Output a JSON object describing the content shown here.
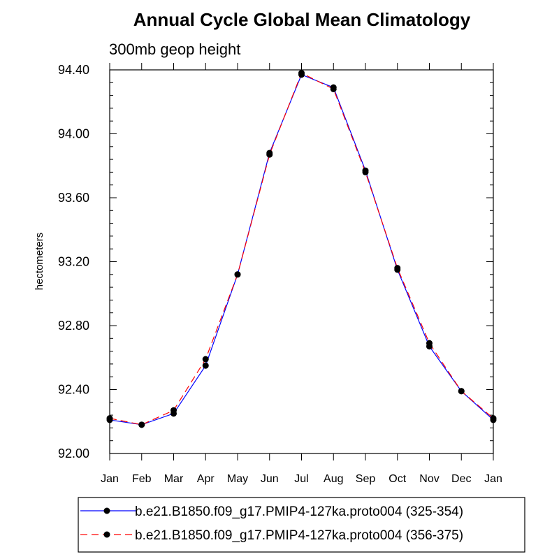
{
  "chart_data": {
    "type": "line",
    "title": "Annual Cycle Global Mean Climatology",
    "subtitle": "300mb geop height",
    "xlabel": "",
    "ylabel": "hectometers",
    "categories": [
      "Jan",
      "Feb",
      "Mar",
      "Apr",
      "May",
      "Jun",
      "Jul",
      "Aug",
      "Sep",
      "Oct",
      "Nov",
      "Dec",
      "Jan"
    ],
    "ylim": [
      92.0,
      94.4
    ],
    "yticks": [
      92.0,
      92.4,
      92.8,
      93.2,
      93.6,
      94.0,
      94.4
    ],
    "ytick_labels": [
      "92.00",
      "92.40",
      "92.80",
      "93.20",
      "93.60",
      "94.00",
      "94.40"
    ],
    "grid": false,
    "legend_position": "bottom",
    "series": [
      {
        "name": "b.e21.B1850.f09_g17.PMIP4-127ka.proto004 (325-354)",
        "color": "#0000ff",
        "line_style": "solid",
        "marker": "filled-circle",
        "values": [
          92.21,
          92.18,
          92.25,
          92.55,
          93.12,
          93.88,
          94.37,
          94.29,
          93.77,
          93.15,
          92.67,
          92.39,
          92.21
        ]
      },
      {
        "name": "b.e21.B1850.f09_g17.PMIP4-127ka.proto004 (356-375)",
        "color": "#ff0000",
        "line_style": "dashed",
        "marker": "filled-circle",
        "values": [
          92.22,
          92.18,
          92.27,
          92.59,
          93.12,
          93.87,
          94.38,
          94.28,
          93.76,
          93.16,
          92.69,
          92.39,
          92.22
        ]
      }
    ]
  }
}
